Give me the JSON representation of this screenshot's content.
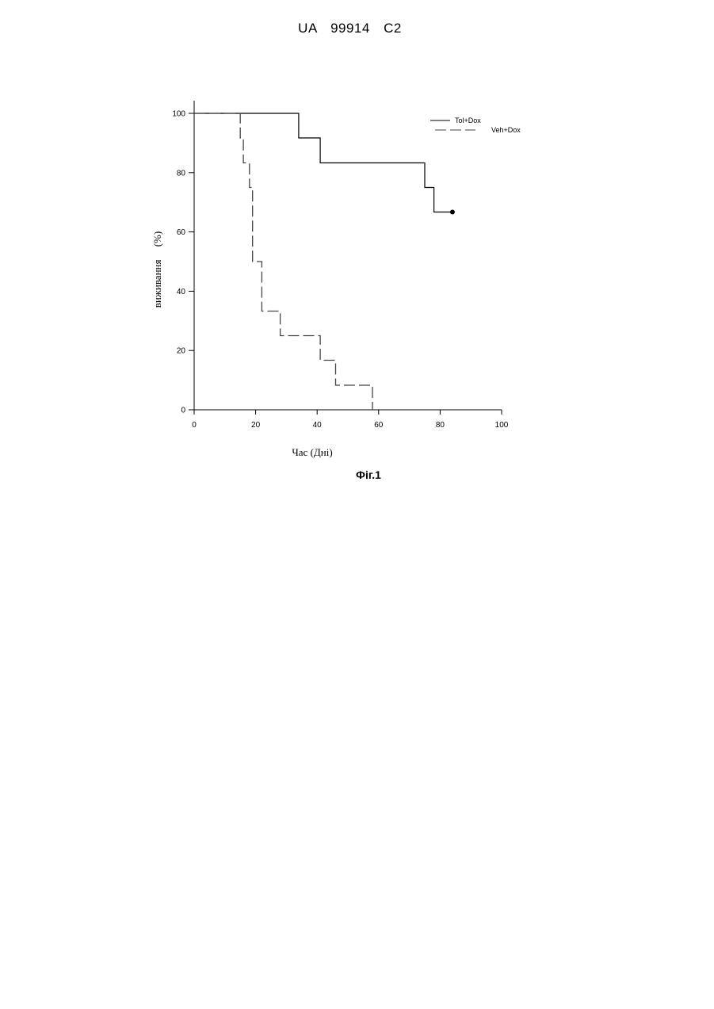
{
  "header": {
    "document_id": "UA   99914   C2"
  },
  "figure_label": "Фіг.1",
  "chart_data": {
    "type": "line",
    "title": "",
    "xlabel": "Час (Дні)",
    "ylabel": "виживання     (%)",
    "xlim": [
      0,
      100
    ],
    "ylim": [
      0,
      100
    ],
    "x_ticks": [
      0,
      20,
      40,
      60,
      80,
      100
    ],
    "y_ticks": [
      0,
      20,
      40,
      60,
      80,
      100
    ],
    "grid": false,
    "legend_position": "top-right",
    "series": [
      {
        "name": "Tol+Dox",
        "style": "solid",
        "color": "#000000",
        "censor_end": true,
        "points": [
          [
            0,
            100
          ],
          [
            34,
            100
          ],
          [
            34,
            91.7
          ],
          [
            41,
            91.7
          ],
          [
            41,
            83.3
          ],
          [
            75,
            83.3
          ],
          [
            75,
            75
          ],
          [
            78,
            75
          ],
          [
            78,
            66.7
          ],
          [
            84,
            66.7
          ]
        ]
      },
      {
        "name": "Veh+Dox",
        "style": "dashed",
        "color": "#444444",
        "censor_end": false,
        "points": [
          [
            0,
            100
          ],
          [
            15,
            100
          ],
          [
            15,
            91.7
          ],
          [
            16,
            91.7
          ],
          [
            16,
            83.3
          ],
          [
            18,
            83.3
          ],
          [
            18,
            75
          ],
          [
            19,
            75
          ],
          [
            19,
            50
          ],
          [
            22,
            50
          ],
          [
            22,
            33.3
          ],
          [
            28,
            33.3
          ],
          [
            28,
            25
          ],
          [
            41,
            25
          ],
          [
            41,
            16.7
          ],
          [
            46,
            16.7
          ],
          [
            46,
            8.3
          ],
          [
            58,
            8.3
          ],
          [
            58,
            0
          ]
        ]
      }
    ]
  }
}
